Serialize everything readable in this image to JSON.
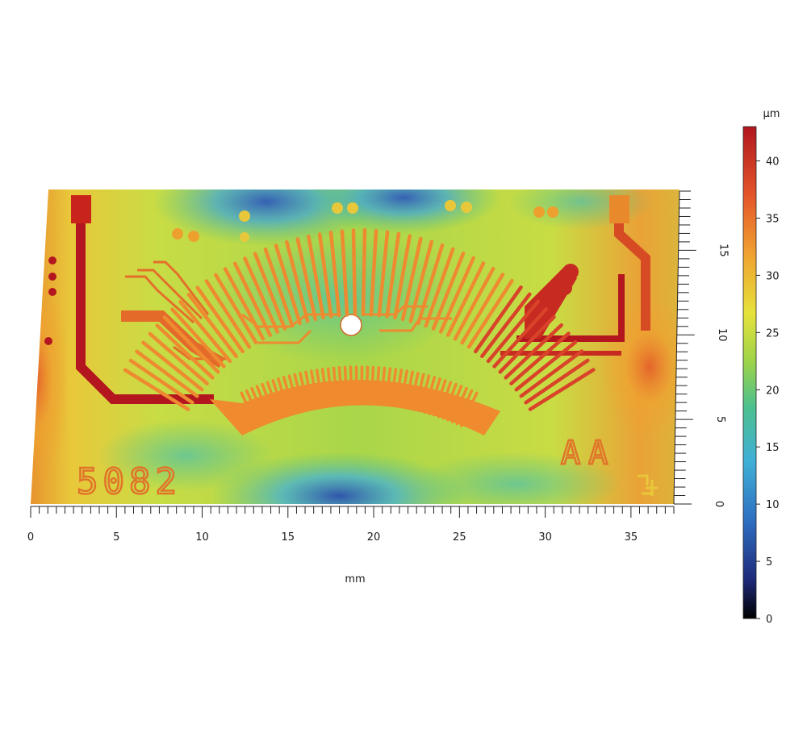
{
  "chart_data": {
    "type": "heatmap",
    "description_kind": "surface height map",
    "xlabel": "mm",
    "ylabel": "",
    "xlim": [
      0,
      37.5
    ],
    "ylim": [
      0,
      18.5
    ],
    "x_ticks": [
      0,
      5,
      10,
      15,
      20,
      25,
      30,
      35
    ],
    "y_ticks": [
      0,
      5,
      10,
      15
    ],
    "colorbar": {
      "unit": "µm",
      "range": [
        0,
        43
      ],
      "ticks": [
        0,
        5,
        10,
        15,
        20,
        25,
        30,
        35,
        40
      ],
      "colormap": [
        "#000000",
        "#1f2a7a",
        "#2d6fc1",
        "#3fb0d6",
        "#4cc08f",
        "#9bd34a",
        "#e6e23a",
        "#f0a230",
        "#e4552a",
        "#b0161f"
      ]
    },
    "surface_features": {
      "engraved_text": [
        "5082",
        "AA"
      ],
      "hole_present": true
    },
    "colors": {
      "trace_hi": "#b3161e",
      "trace_mid": "#e0742a",
      "background_mid": "#b8d94a"
    }
  }
}
